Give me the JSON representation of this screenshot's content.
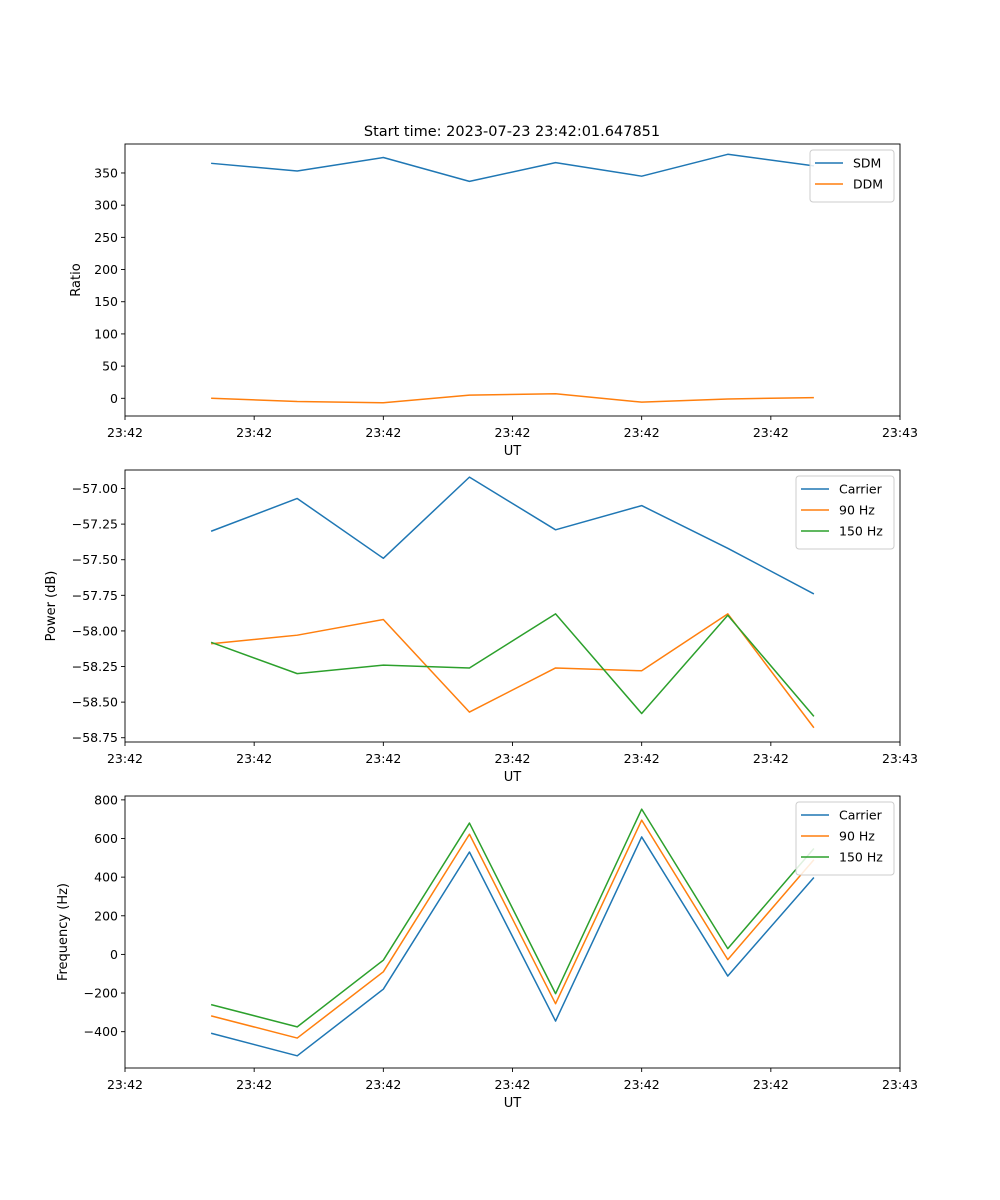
{
  "figure_title": "Start time: 2023-07-23 23:42:01.647851",
  "colors": {
    "c0": "#1f77b4",
    "c1": "#ff7f0e",
    "c2": "#2ca02c"
  },
  "chart_data": [
    {
      "type": "line",
      "title": "Start time: 2023-07-23 23:42:01.647851",
      "xlabel": "UT",
      "ylabel": "Ratio",
      "x": [
        1,
        2,
        3,
        4,
        5,
        6,
        7,
        8
      ],
      "xlim": [
        0,
        9
      ],
      "xticks": [
        0,
        1.5,
        3,
        4.5,
        6,
        7.5,
        9
      ],
      "xtick_labels": [
        "23:42",
        "23:42",
        "23:42",
        "23:42",
        "23:42",
        "23:42",
        "23:43"
      ],
      "ylim": [
        -27.5,
        395
      ],
      "yticks": [
        0,
        50,
        100,
        150,
        200,
        250,
        300,
        350
      ],
      "ytick_labels": [
        "0",
        "50",
        "100",
        "150",
        "200",
        "250",
        "300",
        "350"
      ],
      "legend": "top-right",
      "series": [
        {
          "name": "SDM",
          "color": "#1f77b4",
          "values": [
            365,
            353,
            374,
            337,
            366,
            345,
            379,
            361
          ]
        },
        {
          "name": "DDM",
          "color": "#ff7f0e",
          "values": [
            0,
            -5,
            -7,
            5,
            7,
            -6,
            -1,
            1
          ]
        }
      ]
    },
    {
      "type": "line",
      "title": "",
      "xlabel": "UT",
      "ylabel": "Power (dB)",
      "x": [
        1,
        2,
        3,
        4,
        5,
        6,
        7,
        8
      ],
      "xlim": [
        0,
        9
      ],
      "xticks": [
        0,
        1.5,
        3,
        4.5,
        6,
        7.5,
        9
      ],
      "xtick_labels": [
        "23:42",
        "23:42",
        "23:42",
        "23:42",
        "23:42",
        "23:42",
        "23:43"
      ],
      "ylim": [
        -58.78,
        -56.87
      ],
      "yticks": [
        -58.75,
        -58.5,
        -58.25,
        -58.0,
        -57.75,
        -57.5,
        -57.25,
        -57.0
      ],
      "ytick_labels": [
        "−58.75",
        "−58.50",
        "−58.25",
        "−58.00",
        "−57.75",
        "−57.50",
        "−57.25",
        "−57.00"
      ],
      "legend": "top-right",
      "series": [
        {
          "name": "Carrier",
          "color": "#1f77b4",
          "values": [
            -57.3,
            -57.07,
            -57.49,
            -56.92,
            -57.29,
            -57.12,
            -57.42,
            -57.74
          ]
        },
        {
          "name": "90 Hz",
          "color": "#ff7f0e",
          "values": [
            -58.09,
            -58.03,
            -57.92,
            -58.57,
            -58.26,
            -58.28,
            -57.88,
            -58.68
          ]
        },
        {
          "name": "150 Hz",
          "color": "#2ca02c",
          "values": [
            -58.08,
            -58.3,
            -58.24,
            -58.26,
            -57.88,
            -58.58,
            -57.89,
            -58.6
          ]
        }
      ]
    },
    {
      "type": "line",
      "title": "",
      "xlabel": "UT",
      "ylabel": "Frequency (Hz)",
      "x": [
        1,
        2,
        3,
        4,
        5,
        6,
        7,
        8
      ],
      "xlim": [
        0,
        9
      ],
      "xticks": [
        0,
        1.5,
        3,
        4.5,
        6,
        7.5,
        9
      ],
      "xtick_labels": [
        "23:42",
        "23:42",
        "23:42",
        "23:42",
        "23:42",
        "23:42",
        "23:43"
      ],
      "ylim": [
        -588,
        820
      ],
      "yticks": [
        -400,
        -200,
        0,
        200,
        400,
        600,
        800
      ],
      "ytick_labels": [
        "−400",
        "−200",
        "0",
        "200",
        "400",
        "600",
        "800"
      ],
      "legend": "top-right",
      "series": [
        {
          "name": "Carrier",
          "color": "#1f77b4",
          "values": [
            -408,
            -525,
            -180,
            530,
            -345,
            608,
            -112,
            398
          ]
        },
        {
          "name": "90 Hz",
          "color": "#ff7f0e",
          "values": [
            -318,
            -433,
            -90,
            622,
            -255,
            695,
            -27,
            490
          ]
        },
        {
          "name": "150 Hz",
          "color": "#2ca02c",
          "values": [
            -260,
            -375,
            -30,
            680,
            -203,
            752,
            30,
            548
          ]
        }
      ]
    }
  ]
}
